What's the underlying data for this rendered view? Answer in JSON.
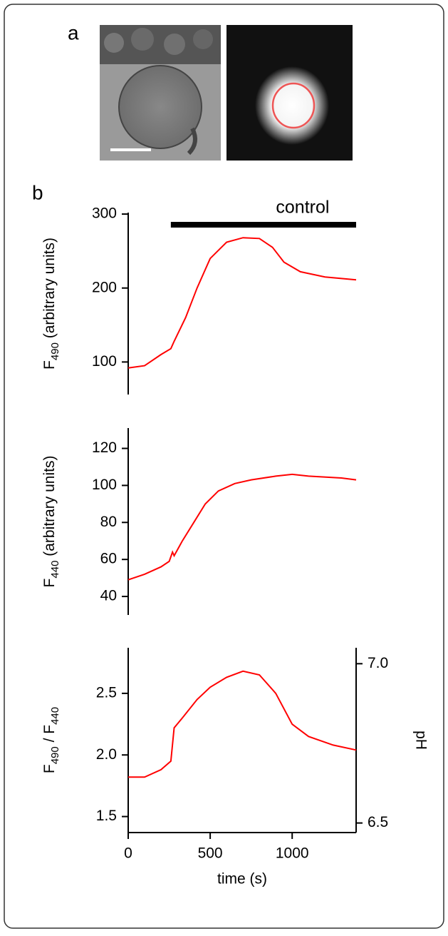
{
  "panel_labels": [
    "a",
    "b"
  ],
  "chart_data": [
    {
      "type": "line",
      "ylabel_parts": [
        "F",
        "490",
        " (arbitrary units)"
      ],
      "annotation": {
        "text": "control",
        "x": [
          260,
          1390
        ]
      },
      "xlim": [
        0,
        1390
      ],
      "ylim": [
        56,
        302
      ],
      "yticks": [
        100,
        200,
        300
      ],
      "x": [
        0,
        100,
        200,
        260,
        280,
        350,
        420,
        500,
        600,
        700,
        800,
        880,
        950,
        1050,
        1200,
        1390
      ],
      "series": [
        {
          "color": "#ff0000",
          "values": [
            92,
            95,
            110,
            118,
            128,
            160,
            200,
            240,
            262,
            268,
            267,
            255,
            235,
            222,
            215,
            211
          ]
        }
      ]
    },
    {
      "type": "line",
      "ylabel_parts": [
        "F",
        "440",
        " (arbitrary units)"
      ],
      "xlim": [
        0,
        1390
      ],
      "ylim": [
        30,
        131
      ],
      "yticks": [
        40,
        60,
        80,
        100,
        120
      ],
      "x": [
        0,
        100,
        200,
        250,
        270,
        280,
        330,
        400,
        470,
        550,
        650,
        750,
        900,
        1000,
        1100,
        1300,
        1390
      ],
      "series": [
        {
          "color": "#ff0000",
          "values": [
            49,
            52,
            56,
            59,
            64,
            62,
            70,
            80,
            90,
            97,
            101,
            103,
            105,
            106,
            105,
            104,
            103
          ]
        }
      ]
    },
    {
      "type": "line",
      "ylabel_parts": [
        "F",
        "490",
        " / F",
        "440"
      ],
      "xlabel": "time (s)",
      "y2label": "pH",
      "xlim": [
        0,
        1390
      ],
      "ylim": [
        1.37,
        2.87
      ],
      "yticks": [
        1.5,
        {
          "value": 2,
          "label": "2.0"
        },
        2.5
      ],
      "y2lim": [
        6.47,
        7.05
      ],
      "y2ticks": [
        6.5,
        {
          "value": 7,
          "label": "7.0"
        }
      ],
      "xticks": [
        0,
        500,
        1000
      ],
      "x": [
        0,
        100,
        200,
        260,
        280,
        330,
        420,
        500,
        600,
        700,
        800,
        900,
        1000,
        1100,
        1250,
        1390
      ],
      "series": [
        {
          "color": "#ff0000",
          "values": [
            1.82,
            1.82,
            1.88,
            1.95,
            2.22,
            2.3,
            2.45,
            2.55,
            2.63,
            2.68,
            2.65,
            2.5,
            2.25,
            2.15,
            2.08,
            2.04
          ]
        }
      ]
    }
  ]
}
